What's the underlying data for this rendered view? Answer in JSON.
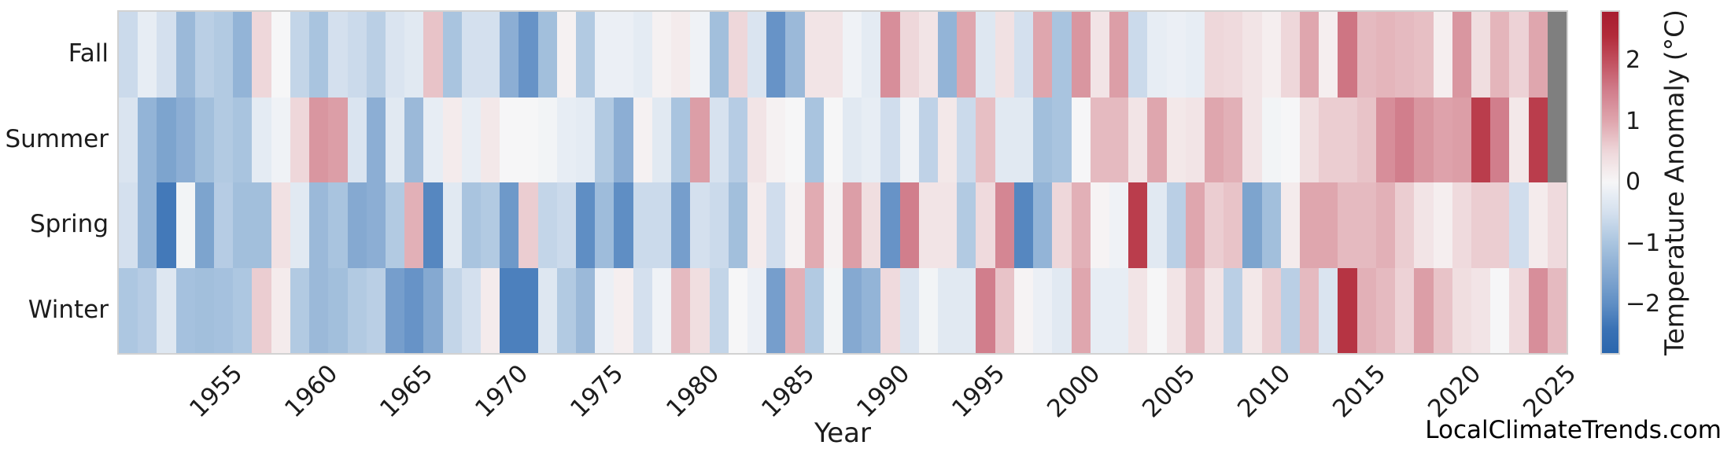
{
  "watermark": "LocalClimateTrends.com",
  "chart_data": {
    "type": "heatmap",
    "title": "",
    "xlabel": "Year",
    "ylabel": "",
    "rows": [
      "Fall",
      "Summer",
      "Spring",
      "Winter"
    ],
    "x": [
      1950,
      1951,
      1952,
      1953,
      1954,
      1955,
      1956,
      1957,
      1958,
      1959,
      1960,
      1961,
      1962,
      1963,
      1964,
      1965,
      1966,
      1967,
      1968,
      1969,
      1970,
      1971,
      1972,
      1973,
      1974,
      1975,
      1976,
      1977,
      1978,
      1979,
      1980,
      1981,
      1982,
      1983,
      1984,
      1985,
      1986,
      1987,
      1988,
      1989,
      1990,
      1991,
      1992,
      1993,
      1994,
      1995,
      1996,
      1997,
      1998,
      1999,
      2000,
      2001,
      2002,
      2003,
      2004,
      2005,
      2006,
      2007,
      2008,
      2009,
      2010,
      2011,
      2012,
      2013,
      2014,
      2015,
      2016,
      2017,
      2018,
      2019,
      2020,
      2021,
      2022,
      2023,
      2024,
      2025
    ],
    "x_tick_labels": [
      "1955",
      "1960",
      "1965",
      "1970",
      "1975",
      "1980",
      "1985",
      "1990",
      "1995",
      "2000",
      "2005",
      "2010",
      "2015",
      "2020",
      "2025"
    ],
    "x_tick_years": [
      1955,
      1960,
      1965,
      1970,
      1975,
      1980,
      1985,
      1990,
      1995,
      2000,
      2005,
      2010,
      2015,
      2020,
      2025
    ],
    "grid": false,
    "series": [
      {
        "name": "Fall",
        "values": [
          -0.6,
          -0.2,
          -0.5,
          -1.2,
          -0.8,
          -0.9,
          -1.3,
          0.5,
          0.0,
          -0.7,
          -1.0,
          -0.5,
          -0.6,
          -0.8,
          -0.4,
          -0.3,
          0.7,
          -1.0,
          -0.5,
          -0.5,
          -1.4,
          -1.9,
          -1.1,
          0.1,
          -0.9,
          -0.15,
          -0.15,
          -0.25,
          0.1,
          0.2,
          -0.1,
          -1.1,
          0.5,
          -0.4,
          -1.9,
          -1.2,
          0.3,
          0.3,
          -0.1,
          -0.25,
          1.3,
          0.5,
          0.3,
          -1.3,
          1.0,
          -0.35,
          0.35,
          -0.5,
          1.0,
          -1.0,
          1.2,
          0.3,
          1.1,
          -0.6,
          -0.2,
          -0.15,
          -0.2,
          0.5,
          0.45,
          0.3,
          0.15,
          0.5,
          1.0,
          0.15,
          1.6,
          0.8,
          0.85,
          0.8,
          0.75,
          0.15,
          1.2,
          0.4,
          0.85,
          0.55,
          1.0,
          null
        ]
      },
      {
        "name": "Summer",
        "values": [
          -0.4,
          -1.3,
          -1.6,
          -1.4,
          -1.1,
          -0.9,
          -1.0,
          -0.25,
          -0.1,
          0.5,
          1.2,
          1.1,
          -0.4,
          -1.4,
          -0.3,
          -1.2,
          -0.2,
          0.2,
          -0.2,
          0.25,
          0.0,
          0.0,
          -0.05,
          -0.2,
          -0.25,
          -0.9,
          -1.4,
          0.1,
          -0.3,
          -1.0,
          1.1,
          -0.45,
          -0.85,
          0.3,
          0.1,
          0.0,
          -1.0,
          0.0,
          -0.3,
          -0.2,
          -0.55,
          -0.1,
          -0.75,
          0.25,
          -0.6,
          0.75,
          -0.3,
          -0.3,
          -1.1,
          -1.0,
          0.0,
          0.8,
          0.8,
          0.3,
          1.0,
          0.25,
          0.3,
          1.0,
          0.9,
          0.3,
          -0.05,
          0.0,
          0.4,
          0.6,
          0.6,
          0.7,
          1.3,
          1.5,
          1.2,
          1.05,
          1.1,
          2.2,
          1.5,
          0.25,
          2.2,
          null
        ]
      },
      {
        "name": "Spring",
        "values": [
          -0.5,
          -1.3,
          -2.3,
          -0.05,
          -1.6,
          -0.85,
          -1.1,
          -1.1,
          0.35,
          -0.3,
          -1.2,
          -1.0,
          -1.5,
          -1.4,
          -0.9,
          0.9,
          -2.1,
          -0.3,
          -1.0,
          -0.9,
          -1.8,
          0.6,
          -0.7,
          -0.6,
          -2.0,
          -1.15,
          -2.0,
          -0.6,
          -0.6,
          -1.7,
          -0.5,
          -0.6,
          -1.1,
          0.2,
          -0.55,
          0.1,
          0.95,
          0.1,
          1.1,
          0.4,
          -1.9,
          1.5,
          0.3,
          0.3,
          -0.9,
          0.45,
          1.4,
          -2.1,
          -1.3,
          0.5,
          0.9,
          0.05,
          -0.1,
          2.2,
          -0.3,
          -0.8,
          1.0,
          0.6,
          0.7,
          -1.6,
          -1.1,
          0.2,
          1.0,
          1.0,
          0.8,
          0.8,
          0.9,
          0.6,
          0.3,
          0.15,
          0.45,
          0.6,
          0.6,
          -0.55,
          0.2,
          0.45
        ]
      },
      {
        "name": "Winter",
        "values": [
          -0.95,
          -0.85,
          -0.35,
          -1.05,
          -1.1,
          -1.05,
          -0.95,
          0.6,
          0.2,
          -0.9,
          -1.2,
          -1.1,
          -0.9,
          -0.8,
          -1.7,
          -1.9,
          -1.5,
          -0.7,
          -0.5,
          0.2,
          -2.2,
          -2.2,
          -0.35,
          -0.9,
          -1.2,
          -0.15,
          0.15,
          -0.5,
          -0.1,
          0.8,
          0.4,
          -0.7,
          0.0,
          -0.15,
          -1.7,
          0.9,
          -0.9,
          -0.05,
          -1.5,
          -1.3,
          0.45,
          -0.4,
          -0.05,
          -0.3,
          -0.3,
          1.5,
          0.7,
          0.05,
          -0.15,
          -0.3,
          1.0,
          -0.2,
          -0.2,
          0.3,
          0.0,
          0.3,
          0.8,
          0.3,
          -0.8,
          0.25,
          0.6,
          -0.8,
          0.8,
          -0.4,
          2.3,
          0.9,
          0.8,
          0.55,
          1.1,
          0.7,
          0.4,
          0.3,
          0.0,
          0.45,
          1.3,
          0.8
        ]
      }
    ],
    "missing_color": "#7f7f7f",
    "colorbar": {
      "label": "Temperature Anomaly (°C)",
      "vmin": -2.8,
      "vmax": 2.8,
      "ticks": [
        2,
        1,
        0,
        -1,
        -2
      ],
      "tick_labels": [
        "2",
        "1",
        "0",
        "−1",
        "−2"
      ],
      "position": "right"
    },
    "colormap_stops": [
      [
        -2.8,
        "#2a66ad"
      ],
      [
        -2.4,
        "#3a72b5"
      ],
      [
        -2.0,
        "#5f8ec4"
      ],
      [
        -1.5,
        "#85a9d1"
      ],
      [
        -1.0,
        "#a9c4df"
      ],
      [
        -0.5,
        "#d4e0ee"
      ],
      [
        -0.2,
        "#e7edf4"
      ],
      [
        0.0,
        "#f6f6f7"
      ],
      [
        0.2,
        "#f4ebec"
      ],
      [
        0.5,
        "#eed7da"
      ],
      [
        1.0,
        "#dfa6ae"
      ],
      [
        1.5,
        "#d17e8c"
      ],
      [
        2.0,
        "#c14f5e"
      ],
      [
        2.4,
        "#b22b3a"
      ],
      [
        2.8,
        "#a71c2f"
      ]
    ]
  }
}
